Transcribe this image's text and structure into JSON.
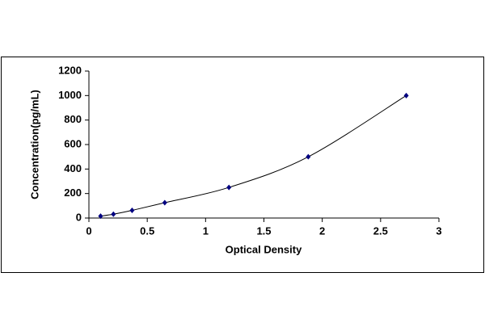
{
  "chart_data": {
    "type": "scatter",
    "x_label": "Optical Density",
    "y_label": "Concentration(pg/mL)",
    "x": [
      0.1,
      0.21,
      0.37,
      0.65,
      1.2,
      1.88,
      2.72
    ],
    "y": [
      15.6,
      31.2,
      62.5,
      125,
      250,
      500,
      1000
    ],
    "color": "#000080",
    "line": true,
    "line_color": "#000000",
    "xlim": [
      0,
      3
    ],
    "xticks": [
      0,
      0.5,
      1,
      1.5,
      2,
      2.5,
      3
    ],
    "ylim": [
      0,
      1200
    ],
    "yticks": [
      0,
      200,
      400,
      600,
      800,
      1000,
      1200
    ],
    "grid": false
  }
}
